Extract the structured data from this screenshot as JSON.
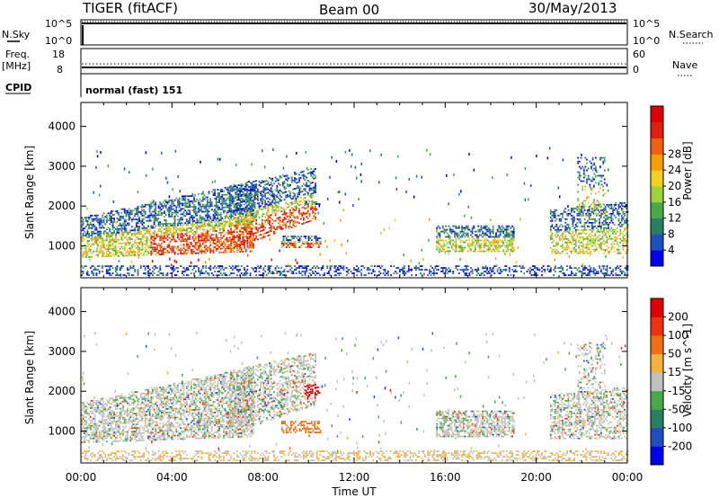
{
  "header": {
    "title": "TIGER (fitACF)",
    "beam": "Beam 00",
    "date": "30/May/2013"
  },
  "top_panels": {
    "nsky": {
      "label": "N.Sky",
      "ticks": [
        "10^5",
        "10^0"
      ]
    },
    "nsearch": {
      "label": "N.Search",
      "ticks": [
        "10^5",
        "10^0"
      ]
    },
    "freq": {
      "label_line1": "Freq.",
      "label_line2": "[MHz]",
      "ticks": [
        "18",
        "8"
      ]
    },
    "nave": {
      "label": "Nave",
      "ticks": [
        "60",
        "0"
      ]
    },
    "cpid": {
      "label": "CPID",
      "value": "normal (fast) 151"
    }
  },
  "colors": {
    "power": [
      "#0000ee",
      "#1f4fbf",
      "#2a7f62",
      "#4aa84a",
      "#9ed23a",
      "#f0d020",
      "#f5a000",
      "#f06010",
      "#e02010",
      "#e00000"
    ],
    "velocity": [
      "#e00000",
      "#f03010",
      "#f07010",
      "#f5b040",
      "#c0c0c0",
      "#4aa84a",
      "#2a7f62",
      "#1f4fbf",
      "#0000ee"
    ]
  },
  "chart_data": [
    {
      "type": "heatmap",
      "ylabel": "Slant Range [km]",
      "xlabel": "",
      "yticks": [
        1000,
        2000,
        3000,
        4000
      ],
      "ylim": [
        200,
        4600
      ],
      "xlim_hours": [
        0,
        24
      ],
      "xticks": [
        "00:00",
        "04:00",
        "08:00",
        "12:00",
        "16:00",
        "20:00",
        "00:00"
      ],
      "colorbar": {
        "label": "Power [dB]",
        "ticks": [
          4,
          8,
          12,
          16,
          20,
          24,
          28
        ]
      }
    },
    {
      "type": "heatmap",
      "ylabel": "Slant Range [km]",
      "xlabel": "Time UT",
      "yticks": [
        1000,
        2000,
        3000,
        4000
      ],
      "ylim": [
        200,
        4600
      ],
      "xlim_hours": [
        0,
        24
      ],
      "xticks": [
        "00:00",
        "04:00",
        "08:00",
        "12:00",
        "16:00",
        "20:00",
        "00:00"
      ],
      "colorbar": {
        "label": "Velocity [m s^-1]",
        "ticks": [
          200,
          100,
          50,
          15,
          -15,
          -50,
          -100,
          -200
        ]
      }
    }
  ]
}
